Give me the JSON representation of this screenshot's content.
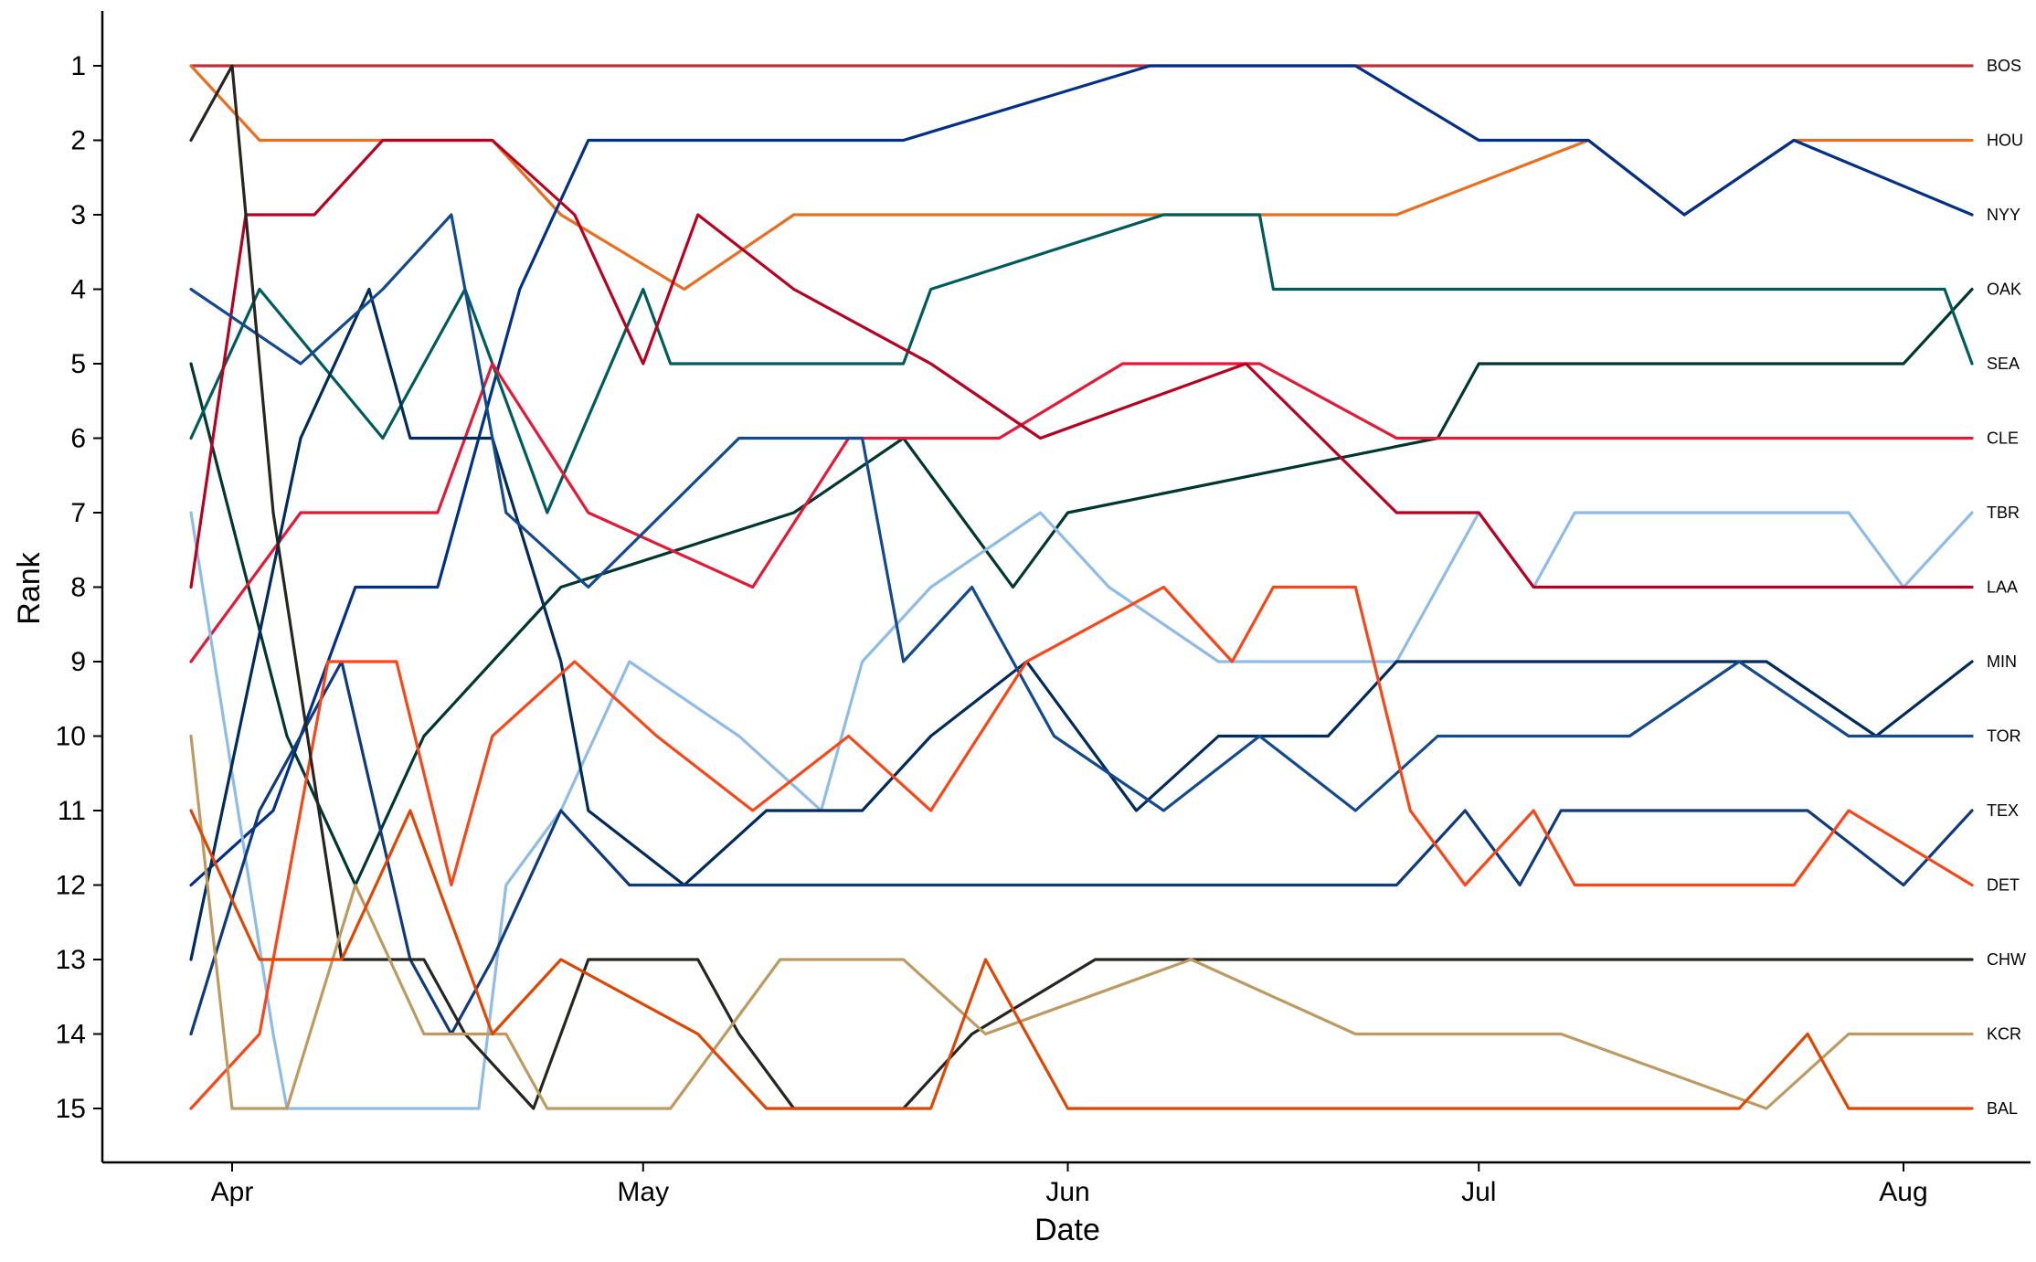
{
  "chart_data": {
    "type": "line",
    "xlabel": "Date",
    "ylabel": "Rank",
    "x_ticks": [
      "Apr",
      "May",
      "Jun",
      "Jul",
      "Aug"
    ],
    "x_tick_dates": [
      "2018-04-01",
      "2018-05-01",
      "2018-06-01",
      "2018-07-01",
      "2018-08-01"
    ],
    "xlim": [
      "2018-03-22",
      "2018-08-08"
    ],
    "y_ticks": [
      1,
      2,
      3,
      4,
      5,
      6,
      7,
      8,
      9,
      10,
      11,
      12,
      13,
      14,
      15
    ],
    "ylim": [
      15.7,
      0.3
    ],
    "y_inverted": true,
    "grid": false,
    "series": [
      {
        "name": "BOS",
        "color": "#BD3039",
        "points": [
          [
            "2018-03-29",
            1
          ],
          [
            "2018-04-09",
            1
          ],
          [
            "2018-05-08",
            1
          ],
          [
            "2018-05-20",
            1
          ],
          [
            "2018-06-07",
            1
          ],
          [
            "2018-06-22",
            1
          ],
          [
            "2018-07-01",
            1
          ],
          [
            "2018-08-06",
            1
          ]
        ]
      },
      {
        "name": "HOU",
        "color": "#EB6E1F",
        "points": [
          [
            "2018-03-29",
            1
          ],
          [
            "2018-04-03",
            2
          ],
          [
            "2018-04-20",
            2
          ],
          [
            "2018-04-25",
            3
          ],
          [
            "2018-05-04",
            4
          ],
          [
            "2018-05-12",
            3
          ],
          [
            "2018-06-25",
            3
          ],
          [
            "2018-07-09",
            2
          ],
          [
            "2018-07-16",
            3
          ],
          [
            "2018-07-24",
            2
          ],
          [
            "2018-08-06",
            2
          ]
        ]
      },
      {
        "name": "NYY",
        "color": "#003087",
        "points": [
          [
            "2018-03-29",
            12
          ],
          [
            "2018-04-04",
            11
          ],
          [
            "2018-04-10",
            8
          ],
          [
            "2018-04-16",
            8
          ],
          [
            "2018-04-22",
            4
          ],
          [
            "2018-04-27",
            2
          ],
          [
            "2018-05-08",
            2
          ],
          [
            "2018-05-20",
            2
          ],
          [
            "2018-06-07",
            1
          ],
          [
            "2018-06-22",
            1
          ],
          [
            "2018-07-01",
            2
          ],
          [
            "2018-07-09",
            2
          ],
          [
            "2018-07-16",
            3
          ],
          [
            "2018-07-24",
            2
          ],
          [
            "2018-08-06",
            3
          ]
        ]
      },
      {
        "name": "OAK",
        "color": "#003831",
        "points": [
          [
            "2018-03-29",
            5
          ],
          [
            "2018-04-05",
            10
          ],
          [
            "2018-04-10",
            12
          ],
          [
            "2018-04-15",
            10
          ],
          [
            "2018-04-20",
            9
          ],
          [
            "2018-04-25",
            8
          ],
          [
            "2018-05-12",
            7
          ],
          [
            "2018-05-20",
            6
          ],
          [
            "2018-05-28",
            8
          ],
          [
            "2018-06-01",
            7
          ],
          [
            "2018-06-28",
            6
          ],
          [
            "2018-07-01",
            5
          ],
          [
            "2018-07-10",
            5
          ],
          [
            "2018-08-01",
            5
          ],
          [
            "2018-08-06",
            4
          ]
        ]
      },
      {
        "name": "SEA",
        "color": "#005C5C",
        "points": [
          [
            "2018-03-29",
            6
          ],
          [
            "2018-04-03",
            4
          ],
          [
            "2018-04-12",
            6
          ],
          [
            "2018-04-18",
            4
          ],
          [
            "2018-04-24",
            7
          ],
          [
            "2018-05-01",
            4
          ],
          [
            "2018-05-03",
            5
          ],
          [
            "2018-05-20",
            5
          ],
          [
            "2018-05-22",
            4
          ],
          [
            "2018-06-08",
            3
          ],
          [
            "2018-06-15",
            3
          ],
          [
            "2018-06-16",
            4
          ],
          [
            "2018-08-04",
            4
          ],
          [
            "2018-08-06",
            5
          ]
        ]
      },
      {
        "name": "CLE",
        "color": "#E31937",
        "points": [
          [
            "2018-03-29",
            9
          ],
          [
            "2018-04-06",
            7
          ],
          [
            "2018-04-16",
            7
          ],
          [
            "2018-04-20",
            5
          ],
          [
            "2018-04-27",
            7
          ],
          [
            "2018-05-09",
            8
          ],
          [
            "2018-05-16",
            6
          ],
          [
            "2018-05-27",
            6
          ],
          [
            "2018-06-05",
            5
          ],
          [
            "2018-06-15",
            5
          ],
          [
            "2018-06-25",
            6
          ],
          [
            "2018-07-13",
            6
          ],
          [
            "2018-08-06",
            6
          ]
        ]
      },
      {
        "name": "TBR",
        "color": "#8FBCE6",
        "points": [
          [
            "2018-03-29",
            7
          ],
          [
            "2018-04-04",
            14
          ],
          [
            "2018-04-05",
            15
          ],
          [
            "2018-04-19",
            15
          ],
          [
            "2018-04-21",
            12
          ],
          [
            "2018-04-25",
            11
          ],
          [
            "2018-04-30",
            9
          ],
          [
            "2018-05-08",
            10
          ],
          [
            "2018-05-14",
            11
          ],
          [
            "2018-05-17",
            9
          ],
          [
            "2018-05-22",
            8
          ],
          [
            "2018-05-30",
            7
          ],
          [
            "2018-06-04",
            8
          ],
          [
            "2018-06-12",
            9
          ],
          [
            "2018-06-25",
            9
          ],
          [
            "2018-07-01",
            7
          ],
          [
            "2018-07-05",
            8
          ],
          [
            "2018-07-08",
            7
          ],
          [
            "2018-07-28",
            7
          ],
          [
            "2018-08-01",
            8
          ],
          [
            "2018-08-06",
            7
          ]
        ]
      },
      {
        "name": "LAA",
        "color": "#BA0021",
        "points": [
          [
            "2018-03-29",
            8
          ],
          [
            "2018-04-02",
            3
          ],
          [
            "2018-04-07",
            3
          ],
          [
            "2018-04-12",
            2
          ],
          [
            "2018-04-20",
            2
          ],
          [
            "2018-04-26",
            3
          ],
          [
            "2018-05-01",
            5
          ],
          [
            "2018-05-05",
            3
          ],
          [
            "2018-05-12",
            4
          ],
          [
            "2018-05-22",
            5
          ],
          [
            "2018-05-30",
            6
          ],
          [
            "2018-06-14",
            5
          ],
          [
            "2018-06-25",
            7
          ],
          [
            "2018-07-01",
            7
          ],
          [
            "2018-07-05",
            8
          ],
          [
            "2018-07-13",
            8
          ],
          [
            "2018-08-06",
            8
          ]
        ]
      },
      {
        "name": "MIN",
        "color": "#002B5C",
        "points": [
          [
            "2018-03-29",
            13
          ],
          [
            "2018-04-06",
            6
          ],
          [
            "2018-04-11",
            4
          ],
          [
            "2018-04-14",
            6
          ],
          [
            "2018-04-20",
            6
          ],
          [
            "2018-04-25",
            9
          ],
          [
            "2018-04-27",
            11
          ],
          [
            "2018-05-04",
            12
          ],
          [
            "2018-05-10",
            11
          ],
          [
            "2018-05-17",
            11
          ],
          [
            "2018-05-22",
            10
          ],
          [
            "2018-05-29",
            9
          ],
          [
            "2018-06-06",
            11
          ],
          [
            "2018-06-12",
            10
          ],
          [
            "2018-06-20",
            10
          ],
          [
            "2018-06-25",
            9
          ],
          [
            "2018-07-05",
            9
          ],
          [
            "2018-07-22",
            9
          ],
          [
            "2018-07-30",
            10
          ],
          [
            "2018-08-06",
            9
          ]
        ]
      },
      {
        "name": "TOR",
        "color": "#134A8E",
        "points": [
          [
            "2018-03-29",
            4
          ],
          [
            "2018-04-06",
            5
          ],
          [
            "2018-04-12",
            4
          ],
          [
            "2018-04-17",
            3
          ],
          [
            "2018-04-21",
            7
          ],
          [
            "2018-04-27",
            8
          ],
          [
            "2018-05-08",
            6
          ],
          [
            "2018-05-17",
            6
          ],
          [
            "2018-05-20",
            9
          ],
          [
            "2018-05-25",
            8
          ],
          [
            "2018-05-31",
            10
          ],
          [
            "2018-06-08",
            11
          ],
          [
            "2018-06-15",
            10
          ],
          [
            "2018-06-22",
            11
          ],
          [
            "2018-06-28",
            10
          ],
          [
            "2018-07-06",
            10
          ],
          [
            "2018-07-12",
            10
          ],
          [
            "2018-07-20",
            9
          ],
          [
            "2018-07-28",
            10
          ],
          [
            "2018-08-06",
            10
          ]
        ]
      },
      {
        "name": "TEX",
        "color": "#0F3B7C",
        "points": [
          [
            "2018-03-29",
            14
          ],
          [
            "2018-04-03",
            11
          ],
          [
            "2018-04-09",
            9
          ],
          [
            "2018-04-14",
            13
          ],
          [
            "2018-04-17",
            14
          ],
          [
            "2018-04-20",
            13
          ],
          [
            "2018-04-25",
            11
          ],
          [
            "2018-04-30",
            12
          ],
          [
            "2018-05-11",
            12
          ],
          [
            "2018-06-01",
            12
          ],
          [
            "2018-06-25",
            12
          ],
          [
            "2018-06-30",
            11
          ],
          [
            "2018-07-04",
            12
          ],
          [
            "2018-07-07",
            11
          ],
          [
            "2018-07-14",
            11
          ],
          [
            "2018-07-25",
            11
          ],
          [
            "2018-08-01",
            12
          ],
          [
            "2018-08-06",
            11
          ]
        ]
      },
      {
        "name": "DET",
        "color": "#FA4616",
        "points": [
          [
            "2018-03-29",
            15
          ],
          [
            "2018-04-03",
            14
          ],
          [
            "2018-04-08",
            9
          ],
          [
            "2018-04-13",
            9
          ],
          [
            "2018-04-17",
            12
          ],
          [
            "2018-04-20",
            10
          ],
          [
            "2018-04-26",
            9
          ],
          [
            "2018-05-02",
            10
          ],
          [
            "2018-05-09",
            11
          ],
          [
            "2018-05-16",
            10
          ],
          [
            "2018-05-22",
            11
          ],
          [
            "2018-05-29",
            9
          ],
          [
            "2018-06-08",
            8
          ],
          [
            "2018-06-13",
            9
          ],
          [
            "2018-06-16",
            8
          ],
          [
            "2018-06-22",
            8
          ],
          [
            "2018-06-26",
            11
          ],
          [
            "2018-06-30",
            12
          ],
          [
            "2018-07-05",
            11
          ],
          [
            "2018-07-08",
            12
          ],
          [
            "2018-07-24",
            12
          ],
          [
            "2018-07-28",
            11
          ],
          [
            "2018-08-06",
            12
          ]
        ]
      },
      {
        "name": "CHW",
        "color": "#27251F",
        "points": [
          [
            "2018-03-29",
            2
          ],
          [
            "2018-04-01",
            1
          ],
          [
            "2018-04-04",
            7
          ],
          [
            "2018-04-09",
            13
          ],
          [
            "2018-04-15",
            13
          ],
          [
            "2018-04-18",
            14
          ],
          [
            "2018-04-23",
            15
          ],
          [
            "2018-04-27",
            13
          ],
          [
            "2018-05-05",
            13
          ],
          [
            "2018-05-08",
            14
          ],
          [
            "2018-05-12",
            15
          ],
          [
            "2018-05-20",
            15
          ],
          [
            "2018-05-25",
            14
          ],
          [
            "2018-06-03",
            13
          ],
          [
            "2018-06-22",
            13
          ],
          [
            "2018-08-06",
            13
          ]
        ]
      },
      {
        "name": "KCR",
        "color": "#BD9B60",
        "points": [
          [
            "2018-03-29",
            10
          ],
          [
            "2018-04-01",
            15
          ],
          [
            "2018-04-05",
            15
          ],
          [
            "2018-04-10",
            12
          ],
          [
            "2018-04-15",
            14
          ],
          [
            "2018-04-21",
            14
          ],
          [
            "2018-04-24",
            15
          ],
          [
            "2018-05-03",
            15
          ],
          [
            "2018-05-11",
            13
          ],
          [
            "2018-05-20",
            13
          ],
          [
            "2018-05-26",
            14
          ],
          [
            "2018-06-10",
            13
          ],
          [
            "2018-06-22",
            14
          ],
          [
            "2018-07-07",
            14
          ],
          [
            "2018-07-22",
            15
          ],
          [
            "2018-07-28",
            14
          ],
          [
            "2018-08-06",
            14
          ]
        ]
      },
      {
        "name": "BAL",
        "color": "#DF4601",
        "points": [
          [
            "2018-03-29",
            11
          ],
          [
            "2018-04-03",
            13
          ],
          [
            "2018-04-09",
            13
          ],
          [
            "2018-04-14",
            11
          ],
          [
            "2018-04-20",
            14
          ],
          [
            "2018-04-25",
            13
          ],
          [
            "2018-05-05",
            14
          ],
          [
            "2018-05-10",
            15
          ],
          [
            "2018-05-22",
            15
          ],
          [
            "2018-05-26",
            13
          ],
          [
            "2018-06-01",
            15
          ],
          [
            "2018-06-25",
            15
          ],
          [
            "2018-07-20",
            15
          ],
          [
            "2018-07-25",
            14
          ],
          [
            "2018-07-28",
            15
          ],
          [
            "2018-08-06",
            15
          ]
        ]
      }
    ]
  }
}
